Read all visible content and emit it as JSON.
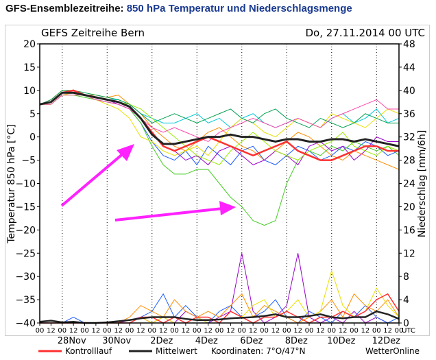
{
  "page": {
    "title_prefix": "GFS-Ensemblezeitreihe:",
    "title_main": "850 hPa Temperatur und Niederschlagsmenge"
  },
  "chart_data": {
    "type": "line",
    "title": "GEFS Zeitreihe Bern",
    "run_time": "Do, 27.11.2014 00 UTC",
    "ylabel": "Temperatur 850 hPa [°C]",
    "y2label": "Niederschlag [mm/6h]",
    "ylim": [
      -40,
      20
    ],
    "y2lim": [
      0,
      48
    ],
    "yticks": [
      20,
      15,
      10,
      5,
      0,
      -5,
      -10,
      -15,
      -20,
      -25,
      -30,
      -35,
      -40
    ],
    "y2ticks": [
      48,
      44,
      40,
      36,
      32,
      28,
      24,
      20,
      16,
      12,
      8,
      4,
      0
    ],
    "x_start": "27Nov 00 UTC",
    "x_step_hours": 12,
    "hour_labels": [
      "00",
      "12"
    ],
    "utc_label": "UTC",
    "date_labels": [
      "28Nov",
      "30Nov",
      "2Dez",
      "4Dez",
      "6Dez",
      "8Dez",
      "10Dez",
      "12Dez"
    ],
    "legend": {
      "control": "Kontrolllauf",
      "mean": "Mittelwert",
      "coords": "Koordinaten: 7°O/47°N",
      "source": "WetterOnline"
    },
    "colors": {
      "control": "#ff3030",
      "mean": "#222222",
      "arrow": "#ff22ff"
    },
    "mean": [
      7,
      7.5,
      9.5,
      9.5,
      9,
      8.5,
      8,
      7.5,
      6.5,
      4,
      0.5,
      -1.5,
      -1.5,
      -1,
      -0.5,
      0,
      0,
      0.5,
      0,
      0,
      -0.5,
      -1,
      -0.5,
      -0.5,
      -1,
      -1,
      -0.5,
      -0.5,
      -1,
      -0.5,
      -1,
      -1.5,
      -2
    ],
    "control": [
      7,
      7.5,
      9.5,
      10,
      9,
      8.5,
      8,
      7.5,
      6.5,
      4,
      1,
      -2,
      -3,
      -2,
      -1,
      0,
      -1,
      -2,
      -3,
      -4,
      -3,
      -2,
      -1,
      -3,
      -4,
      -5,
      -5,
      -4,
      -3,
      -2,
      -2,
      -3,
      -3
    ],
    "members": [
      {
        "color": "#ff8c00",
        "values": [
          7,
          8,
          10,
          10,
          9,
          9,
          8.5,
          9,
          7,
          5,
          2,
          0,
          -2,
          -3,
          -1,
          1,
          2,
          0,
          -2,
          -3,
          -5,
          -3,
          -1,
          1,
          0,
          -2,
          -4,
          -5,
          -3,
          -4,
          -5,
          -6,
          -7
        ]
      },
      {
        "color": "#1e5cff",
        "values": [
          7,
          7,
          9,
          9.5,
          9,
          8,
          7.5,
          7,
          6,
          3,
          -1,
          -4,
          -5,
          -3,
          -6,
          -2,
          -4,
          -6,
          -3,
          -2,
          -5,
          -6,
          -4,
          -2,
          -3,
          -5,
          -4,
          -2,
          -3,
          -1,
          -2,
          -4,
          -3
        ]
      },
      {
        "color": "#00c8d8",
        "values": [
          7,
          7.5,
          9.5,
          10,
          9,
          8.5,
          8,
          8,
          7,
          5,
          4,
          3,
          3,
          4,
          5,
          3,
          4,
          2,
          4,
          5,
          3,
          2,
          3,
          4,
          3,
          2,
          4,
          5,
          3,
          4,
          6,
          3,
          4
        ]
      },
      {
        "color": "#44cc22",
        "values": [
          7,
          7,
          9,
          9,
          8.5,
          8,
          7.5,
          7,
          6,
          3,
          -2,
          -6,
          -8,
          -8,
          -7,
          -7,
          -10,
          -13,
          -15,
          -18,
          -19,
          -18,
          -10,
          -5,
          -3,
          -4,
          -2,
          -3,
          -1,
          -2,
          -3,
          -2,
          -4
        ]
      },
      {
        "color": "#e8e000",
        "values": [
          7,
          7,
          9,
          9.5,
          9,
          8,
          7,
          6,
          4,
          0,
          -1,
          -3,
          -4,
          -3,
          -2,
          -4,
          -1,
          2,
          4,
          3,
          1,
          0,
          2,
          4,
          3,
          2,
          5,
          4,
          3,
          2,
          4,
          6,
          5
        ]
      },
      {
        "color": "#9900cc",
        "values": [
          7,
          7.5,
          9.5,
          9.5,
          9,
          8.5,
          8,
          7,
          6,
          4,
          1,
          -2,
          -3,
          -5,
          -4,
          -6,
          -3,
          -2,
          -4,
          -6,
          -5,
          -3,
          -4,
          -6,
          -2,
          -1,
          -3,
          -2,
          -5,
          -3,
          0,
          -1,
          -1
        ]
      },
      {
        "color": "#99ee00",
        "values": [
          7,
          7,
          9,
          9,
          9,
          8.5,
          8,
          7.5,
          7,
          6,
          4,
          2,
          0,
          -2,
          -4,
          -5,
          -6,
          -3,
          -1,
          1,
          -1,
          -3,
          -4,
          -5,
          -3,
          -2,
          -1,
          1,
          -2,
          -3,
          -4,
          -2,
          -3
        ]
      },
      {
        "color": "#00a050",
        "values": [
          7,
          8,
          10,
          10,
          9.5,
          9,
          8.5,
          8,
          7,
          5,
          3,
          4,
          5,
          4,
          3,
          4,
          5,
          6,
          4,
          3,
          5,
          6,
          4,
          3,
          2,
          4,
          3,
          2,
          3,
          5,
          4,
          3,
          3
        ]
      },
      {
        "color": "#ff44aa",
        "values": [
          7,
          7,
          9,
          9,
          9,
          8,
          7.5,
          7,
          6,
          4,
          2,
          1,
          2,
          1,
          0,
          -1,
          1,
          2,
          3,
          4,
          3,
          2,
          3,
          4,
          3,
          2,
          4,
          5,
          6,
          7,
          8,
          6,
          6
        ]
      }
    ],
    "precip_mean": [
      0.2,
      0.4,
      0.1,
      0.2,
      0,
      0,
      0.1,
      0.3,
      0.5,
      0.8,
      1,
      1,
      1,
      0.7,
      0.5,
      0.5,
      0.6,
      0.8,
      0.9,
      1,
      1.2,
      1.5,
      1,
      1,
      1.2,
      1.5,
      1,
      0.8,
      1,
      1,
      2,
      1.5,
      0.7
    ],
    "precip_control": [
      0,
      0,
      0,
      0,
      0,
      0,
      0,
      0,
      0,
      1,
      1,
      0,
      1,
      0,
      1,
      1,
      0,
      2,
      1,
      0,
      1,
      1,
      2,
      1,
      0,
      1,
      1,
      2,
      1,
      2,
      4,
      5,
      2
    ],
    "precip_members": [
      {
        "color": "#9900cc",
        "values": [
          0,
          0,
          0,
          0,
          0,
          0,
          0,
          0,
          0.5,
          1,
          0,
          1,
          0,
          2,
          1,
          0,
          1,
          2,
          12,
          2,
          0,
          1,
          3,
          12,
          1,
          0,
          1,
          0,
          2,
          0,
          1,
          0,
          0
        ]
      },
      {
        "color": "#1e5cff",
        "values": [
          0,
          0.5,
          0,
          1,
          0,
          0,
          0,
          0,
          0,
          1,
          2,
          5,
          1,
          3,
          1,
          0,
          2,
          3,
          1,
          1,
          2,
          4,
          1,
          0,
          2,
          1,
          0,
          2,
          1,
          3,
          1,
          0,
          1
        ]
      },
      {
        "color": "#ff8c00",
        "values": [
          0,
          0,
          0,
          0,
          0,
          0,
          0,
          0,
          1,
          3,
          2,
          1,
          4,
          2,
          1,
          2,
          1,
          3,
          5,
          1,
          3,
          2,
          1,
          0,
          1,
          2,
          4,
          1,
          5,
          3,
          2,
          4,
          1
        ]
      },
      {
        "color": "#e8e000",
        "values": [
          0,
          0,
          0,
          0,
          0,
          0,
          0,
          0,
          0,
          1,
          0,
          1,
          0,
          0,
          1,
          0,
          0,
          2,
          1,
          3,
          4,
          1,
          2,
          4,
          1,
          2,
          9,
          3,
          1,
          2,
          6,
          3,
          1
        ]
      }
    ]
  }
}
